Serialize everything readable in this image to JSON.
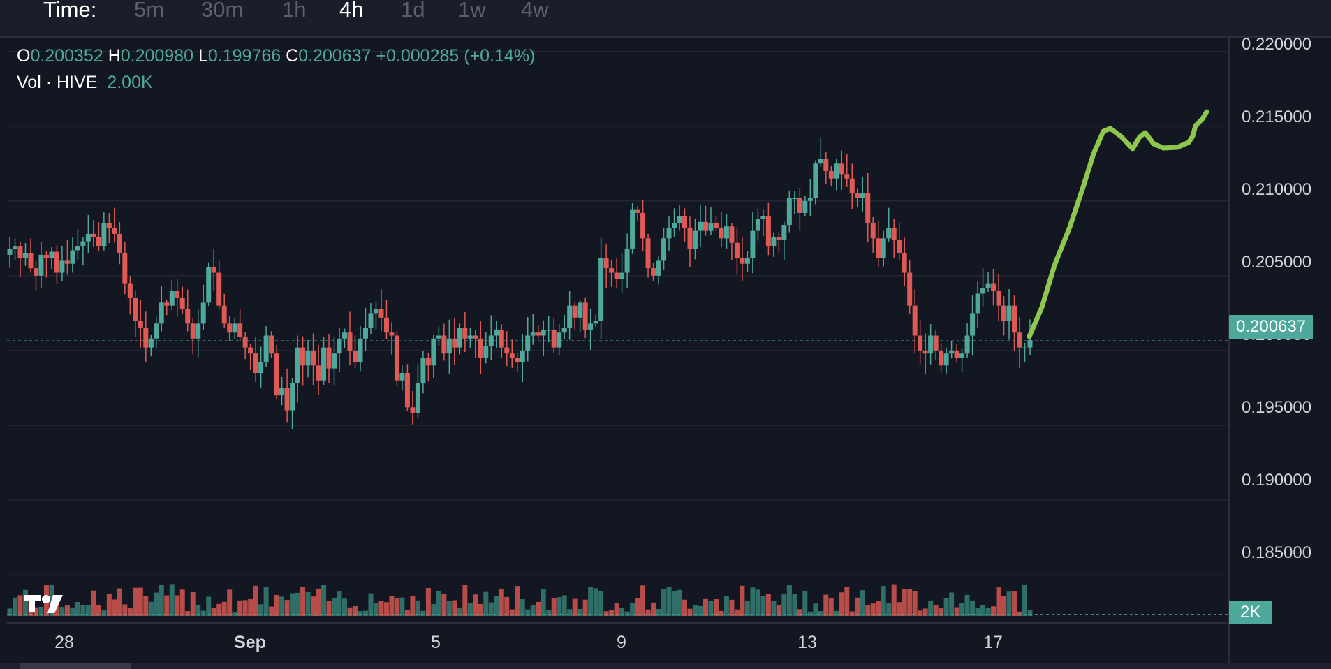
{
  "toolbar": {
    "time_label": "Time:",
    "timeframes": [
      "5m",
      "30m",
      "1h",
      "4h",
      "1d",
      "1w",
      "4w"
    ],
    "active": "4h"
  },
  "legend": {
    "o_label": "O",
    "o_value": "0.200352",
    "h_label": "H",
    "h_value": "0.200980",
    "l_label": "L",
    "l_value": "0.199766",
    "c_label": "C",
    "c_value": "0.200637",
    "change": "+0.000285 (+0.14%)",
    "vol_label": "Vol · HIVE",
    "vol_value": "2.00K"
  },
  "price_tag": "0.200637",
  "volume_tag": "2K",
  "colors": {
    "background": "#131722",
    "up": "#4fa89c",
    "down": "#e05a55",
    "drawing": "#8ec64e",
    "grid": "#232734",
    "text": "#d1d4dc"
  },
  "logo_icon": "tradingview-logo",
  "chart_data": {
    "type": "candlestick",
    "title": "",
    "y_ticks": [
      "0.220000",
      "0.215000",
      "0.210000",
      "0.205000",
      "0.200000",
      "0.195000",
      "0.190000",
      "0.185000"
    ],
    "ylim": [
      0.1815,
      0.2205
    ],
    "x_ticks": [
      "28",
      "Sep",
      "5",
      "9",
      "13",
      "17"
    ],
    "last_close": 0.200637,
    "candles_close": [
      0.2068,
      0.207,
      0.2062,
      0.2065,
      0.2055,
      0.205,
      0.2064,
      0.2062,
      0.2066,
      0.2052,
      0.206,
      0.2058,
      0.2067,
      0.207,
      0.2073,
      0.2078,
      0.2076,
      0.207,
      0.2085,
      0.2082,
      0.2078,
      0.2065,
      0.2045,
      0.2035,
      0.202,
      0.2015,
      0.2002,
      0.2008,
      0.2018,
      0.2032,
      0.203,
      0.204,
      0.2035,
      0.2028,
      0.2018,
      0.2008,
      0.2018,
      0.2032,
      0.2056,
      0.2052,
      0.203,
      0.2018,
      0.2012,
      0.2018,
      0.2009,
      0.2002,
      0.1998,
      0.1985,
      0.1992,
      0.201,
      0.1998,
      0.197,
      0.1975,
      0.196,
      0.1978,
      0.2002,
      0.199,
      0.2,
      0.199,
      0.198,
      0.2002,
      0.1988,
      0.1998,
      0.2008,
      0.2012,
      0.2,
      0.1992,
      0.2008,
      0.2015,
      0.2025,
      0.2028,
      0.2022,
      0.2012,
      0.201,
      0.198,
      0.1985,
      0.1962,
      0.1958,
      0.1978,
      0.1995,
      0.199,
      0.2008,
      0.201,
      0.1998,
      0.2008,
      0.2002,
      0.2015,
      0.2008,
      0.201,
      0.2008,
      0.1995,
      0.2003,
      0.201,
      0.2014,
      0.2002,
      0.1998,
      0.1995,
      0.1992,
      0.2,
      0.201,
      0.2012,
      0.201,
      0.2014,
      0.2014,
      0.2002,
      0.2012,
      0.2015,
      0.203,
      0.2022,
      0.2032,
      0.2014,
      0.2018,
      0.202,
      0.2062,
      0.2055,
      0.2052,
      0.2048,
      0.2052,
      0.2068,
      0.2094,
      0.2092,
      0.2075,
      0.2055,
      0.205,
      0.206,
      0.2075,
      0.2082,
      0.2085,
      0.209,
      0.2082,
      0.2068,
      0.208,
      0.2086,
      0.208,
      0.2085,
      0.2082,
      0.2075,
      0.2083,
      0.2072,
      0.2062,
      0.2058,
      0.2062,
      0.208,
      0.2088,
      0.209,
      0.207,
      0.2076,
      0.2074,
      0.2084,
      0.2102,
      0.2102,
      0.2092,
      0.21,
      0.2102,
      0.2125,
      0.2128,
      0.212,
      0.2115,
      0.2125,
      0.2118,
      0.2115,
      0.2105,
      0.2102,
      0.2105,
      0.2085,
      0.2075,
      0.2062,
      0.2075,
      0.2082,
      0.2074,
      0.2065,
      0.2052,
      0.203,
      0.201,
      0.2,
      0.1998,
      0.201,
      0.2,
      0.199,
      0.1998,
      0.2,
      0.1995,
      0.1998,
      0.201,
      0.2025,
      0.2038,
      0.2042,
      0.2045,
      0.204,
      0.203,
      0.202,
      0.203,
      0.2012,
      0.2002,
      0.2002,
      0.2007
    ]
  }
}
